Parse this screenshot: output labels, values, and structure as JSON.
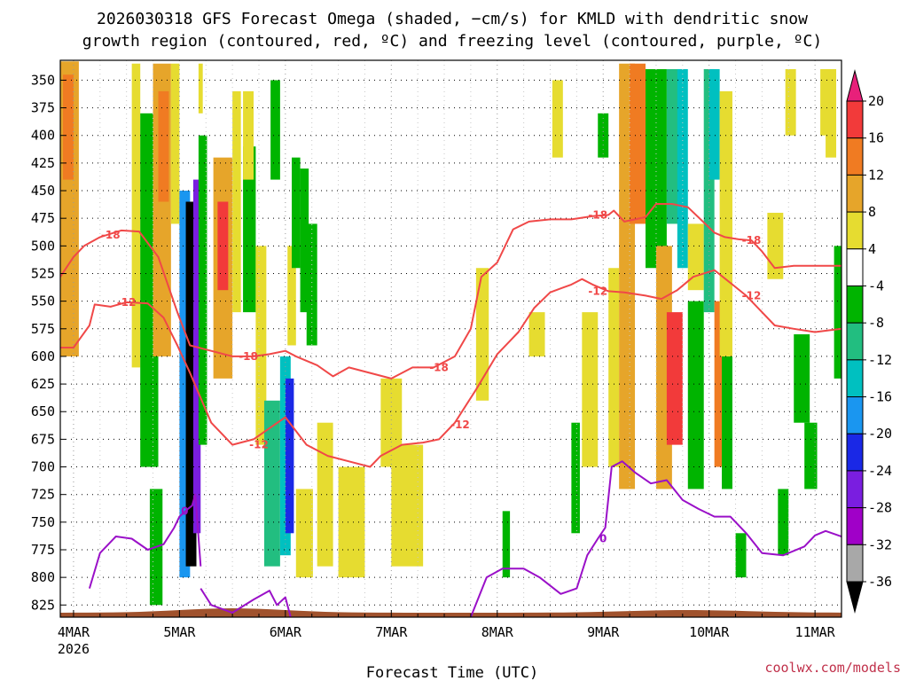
{
  "chart_data": {
    "type": "heatmap",
    "title_lines": [
      "2026030318 GFS Forecast Omega (shaded, −cm/s) for KMLD with dendritic snow",
      "growth region (contoured, red, ºC) and freezing level (contoured, purple, ºC)"
    ],
    "xlabel": "Forecast Time (UTC)",
    "credit": "coolwx.com/models",
    "x_ticks": [
      {
        "t": 0.0,
        "label": "4MAR",
        "sub": "2026"
      },
      {
        "t": 1.0,
        "label": "5MAR"
      },
      {
        "t": 2.0,
        "label": "6MAR"
      },
      {
        "t": 3.0,
        "label": "7MAR"
      },
      {
        "t": 4.0,
        "label": "8MAR"
      },
      {
        "t": 5.0,
        "label": "9MAR"
      },
      {
        "t": 6.0,
        "label": "10MAR"
      },
      {
        "t": 7.0,
        "label": "11MAR"
      }
    ],
    "xlim": [
      -0.125,
      7.25
    ],
    "y_ticks": [
      350,
      375,
      400,
      425,
      450,
      475,
      500,
      525,
      550,
      575,
      600,
      625,
      650,
      675,
      700,
      725,
      750,
      775,
      800,
      825
    ],
    "ylim": [
      332,
      836
    ],
    "colorbar": {
      "labels": [
        "20",
        "16",
        "12",
        "8",
        "4",
        "-4",
        "-8",
        "-12",
        "-16",
        "-20",
        "-24",
        "-28",
        "-32",
        "-36"
      ],
      "bands": [
        {
          "from": 20,
          "to": 24,
          "color": "#e8207a"
        },
        {
          "from": 16,
          "to": 20,
          "color": "#f23a3a"
        },
        {
          "from": 12,
          "to": 16,
          "color": "#f07b22"
        },
        {
          "from": 8,
          "to": 12,
          "color": "#e6a52a"
        },
        {
          "from": 4,
          "to": 8,
          "color": "#e6dc30"
        },
        {
          "from": -4,
          "to": 4,
          "color": "#ffffff"
        },
        {
          "from": -8,
          "to": -4,
          "color": "#00b400"
        },
        {
          "from": -12,
          "to": -8,
          "color": "#22be80"
        },
        {
          "from": -16,
          "to": -12,
          "color": "#00c0c0"
        },
        {
          "from": -20,
          "to": -16,
          "color": "#1a96f0"
        },
        {
          "from": -24,
          "to": -20,
          "color": "#1a28e6"
        },
        {
          "from": -28,
          "to": -24,
          "color": "#7a1ee0"
        },
        {
          "from": -32,
          "to": -28,
          "color": "#a000c8"
        },
        {
          "from": -36,
          "to": -32,
          "color": "#a8a8a8"
        },
        {
          "from": -40,
          "to": -36,
          "color": "#000000"
        }
      ]
    },
    "omega_regions": [
      {
        "t0": -0.125,
        "t1": 0.05,
        "p0": 333,
        "p1": 600,
        "value": 8
      },
      {
        "t0": -0.1,
        "t1": 0.0,
        "p0": 345,
        "p1": 440,
        "value": 12
      },
      {
        "t0": 0.55,
        "t1": 0.63,
        "p0": 335,
        "p1": 610,
        "value": 6
      },
      {
        "t0": 0.63,
        "t1": 0.8,
        "p0": 380,
        "p1": 700,
        "value": -6
      },
      {
        "t0": 0.75,
        "t1": 0.92,
        "p0": 335,
        "p1": 600,
        "value": 8
      },
      {
        "t0": 0.8,
        "t1": 0.9,
        "p0": 360,
        "p1": 460,
        "value": 12
      },
      {
        "t0": 0.72,
        "t1": 0.84,
        "p0": 720,
        "p1": 825,
        "value": -6
      },
      {
        "t0": 0.92,
        "t1": 1.0,
        "p0": 335,
        "p1": 480,
        "value": 6
      },
      {
        "t0": 1.0,
        "t1": 1.1,
        "p0": 450,
        "p1": 800,
        "value": -18
      },
      {
        "t0": 1.06,
        "t1": 1.16,
        "p0": 460,
        "p1": 790,
        "value": -40
      },
      {
        "t0": 1.13,
        "t1": 1.2,
        "p0": 440,
        "p1": 760,
        "value": -26
      },
      {
        "t0": 1.18,
        "t1": 1.26,
        "p0": 400,
        "p1": 680,
        "value": -6
      },
      {
        "t0": 1.18,
        "t1": 1.22,
        "p0": 335,
        "p1": 380,
        "value": 6
      },
      {
        "t0": 1.32,
        "t1": 1.5,
        "p0": 420,
        "p1": 620,
        "value": 10
      },
      {
        "t0": 1.36,
        "t1": 1.46,
        "p0": 460,
        "p1": 540,
        "value": 18
      },
      {
        "t0": 1.5,
        "t1": 1.58,
        "p0": 360,
        "p1": 560,
        "value": 6
      },
      {
        "t0": 1.6,
        "t1": 1.72,
        "p0": 410,
        "p1": 560,
        "value": -6
      },
      {
        "t0": 1.6,
        "t1": 1.7,
        "p0": 360,
        "p1": 440,
        "value": 6
      },
      {
        "t0": 1.72,
        "t1": 1.82,
        "p0": 500,
        "p1": 680,
        "value": 6
      },
      {
        "t0": 1.8,
        "t1": 1.95,
        "p0": 640,
        "p1": 790,
        "value": -10
      },
      {
        "t0": 1.86,
        "t1": 1.95,
        "p0": 350,
        "p1": 440,
        "value": -6
      },
      {
        "t0": 1.95,
        "t1": 2.05,
        "p0": 600,
        "p1": 780,
        "value": -14
      },
      {
        "t0": 2.0,
        "t1": 2.08,
        "p0": 620,
        "p1": 760,
        "value": -22
      },
      {
        "t0": 2.02,
        "t1": 2.1,
        "p0": 500,
        "p1": 590,
        "value": 6
      },
      {
        "t0": 2.06,
        "t1": 2.14,
        "p0": 420,
        "p1": 520,
        "value": -6
      },
      {
        "t0": 2.14,
        "t1": 2.22,
        "p0": 430,
        "p1": 560,
        "value": -8
      },
      {
        "t0": 2.2,
        "t1": 2.3,
        "p0": 480,
        "p1": 590,
        "value": -6
      },
      {
        "t0": 2.1,
        "t1": 2.26,
        "p0": 720,
        "p1": 800,
        "value": 6
      },
      {
        "t0": 2.3,
        "t1": 2.45,
        "p0": 660,
        "p1": 790,
        "value": 6
      },
      {
        "t0": 2.5,
        "t1": 2.75,
        "p0": 700,
        "p1": 800,
        "value": 6
      },
      {
        "t0": 2.9,
        "t1": 3.1,
        "p0": 620,
        "p1": 700,
        "value": 6
      },
      {
        "t0": 3.0,
        "t1": 3.3,
        "p0": 680,
        "p1": 790,
        "value": 6
      },
      {
        "t0": 3.8,
        "t1": 3.92,
        "p0": 520,
        "p1": 640,
        "value": 6
      },
      {
        "t0": 4.05,
        "t1": 4.12,
        "p0": 740,
        "p1": 800,
        "value": -6
      },
      {
        "t0": 4.3,
        "t1": 4.45,
        "p0": 560,
        "p1": 600,
        "value": 6
      },
      {
        "t0": 4.52,
        "t1": 4.62,
        "p0": 350,
        "p1": 420,
        "value": 6
      },
      {
        "t0": 4.7,
        "t1": 4.78,
        "p0": 660,
        "p1": 760,
        "value": -6
      },
      {
        "t0": 4.8,
        "t1": 4.95,
        "p0": 560,
        "p1": 700,
        "value": 6
      },
      {
        "t0": 4.95,
        "t1": 5.05,
        "p0": 380,
        "p1": 420,
        "value": -6
      },
      {
        "t0": 5.05,
        "t1": 5.15,
        "p0": 520,
        "p1": 700,
        "value": 6
      },
      {
        "t0": 5.15,
        "t1": 5.3,
        "p0": 335,
        "p1": 720,
        "value": 8
      },
      {
        "t0": 5.25,
        "t1": 5.4,
        "p0": 335,
        "p1": 480,
        "value": 12
      },
      {
        "t0": 5.4,
        "t1": 5.6,
        "p0": 340,
        "p1": 520,
        "value": -6
      },
      {
        "t0": 5.5,
        "t1": 5.65,
        "p0": 500,
        "p1": 720,
        "value": 8
      },
      {
        "t0": 5.6,
        "t1": 5.75,
        "p0": 340,
        "p1": 480,
        "value": -10
      },
      {
        "t0": 5.6,
        "t1": 5.75,
        "p0": 560,
        "p1": 680,
        "value": 18
      },
      {
        "t0": 5.7,
        "t1": 5.8,
        "p0": 340,
        "p1": 520,
        "value": -14
      },
      {
        "t0": 5.8,
        "t1": 5.95,
        "p0": 550,
        "p1": 720,
        "value": -6
      },
      {
        "t0": 5.8,
        "t1": 5.95,
        "p0": 480,
        "p1": 540,
        "value": 6
      },
      {
        "t0": 5.95,
        "t1": 6.05,
        "p0": 340,
        "p1": 560,
        "value": -10
      },
      {
        "t0": 6.0,
        "t1": 6.1,
        "p0": 340,
        "p1": 440,
        "value": -16
      },
      {
        "t0": 6.05,
        "t1": 6.15,
        "p0": 550,
        "p1": 700,
        "value": 12
      },
      {
        "t0": 6.12,
        "t1": 6.22,
        "p0": 600,
        "p1": 720,
        "value": -6
      },
      {
        "t0": 6.1,
        "t1": 6.22,
        "p0": 360,
        "p1": 600,
        "value": 6
      },
      {
        "t0": 6.25,
        "t1": 6.35,
        "p0": 760,
        "p1": 800,
        "value": -6
      },
      {
        "t0": 6.55,
        "t1": 6.7,
        "p0": 470,
        "p1": 530,
        "value": 6
      },
      {
        "t0": 6.65,
        "t1": 6.75,
        "p0": 720,
        "p1": 780,
        "value": -6
      },
      {
        "t0": 6.72,
        "t1": 6.82,
        "p0": 340,
        "p1": 400,
        "value": 6
      },
      {
        "t0": 6.8,
        "t1": 6.95,
        "p0": 580,
        "p1": 660,
        "value": -6
      },
      {
        "t0": 6.9,
        "t1": 7.02,
        "p0": 660,
        "p1": 720,
        "value": -6
      },
      {
        "t0": 7.05,
        "t1": 7.15,
        "p0": 340,
        "p1": 400,
        "value": 6
      },
      {
        "t0": 7.1,
        "t1": 7.2,
        "p0": 340,
        "p1": 420,
        "value": 6
      },
      {
        "t0": 7.18,
        "t1": 7.25,
        "p0": 500,
        "p1": 620,
        "value": -6
      }
    ],
    "dgz_contours": [
      {
        "label": "-18",
        "label_at": [
          [
            0.35,
            490
          ],
          [
            1.65,
            600
          ],
          [
            3.45,
            610
          ],
          [
            4.95,
            472
          ],
          [
            6.4,
            495
          ]
        ],
        "points": [
          [
            -0.125,
            528
          ],
          [
            0.0,
            510
          ],
          [
            0.1,
            500
          ],
          [
            0.25,
            492
          ],
          [
            0.45,
            486
          ],
          [
            0.62,
            487
          ],
          [
            0.8,
            510
          ],
          [
            0.98,
            560
          ],
          [
            1.1,
            590
          ],
          [
            1.3,
            595
          ],
          [
            1.5,
            600
          ],
          [
            1.7,
            600
          ],
          [
            1.85,
            598
          ],
          [
            2.0,
            595
          ],
          [
            2.1,
            600
          ],
          [
            2.3,
            608
          ],
          [
            2.45,
            618
          ],
          [
            2.6,
            610
          ],
          [
            2.8,
            615
          ],
          [
            3.0,
            620
          ],
          [
            3.2,
            610
          ],
          [
            3.4,
            610
          ],
          [
            3.6,
            600
          ],
          [
            3.75,
            575
          ],
          [
            3.85,
            528
          ],
          [
            4.0,
            515
          ],
          [
            4.1,
            495
          ],
          [
            4.15,
            485
          ],
          [
            4.3,
            478
          ],
          [
            4.5,
            476
          ],
          [
            4.7,
            476
          ],
          [
            4.9,
            473
          ],
          [
            5.05,
            472
          ],
          [
            5.1,
            468
          ],
          [
            5.2,
            478
          ],
          [
            5.4,
            474
          ],
          [
            5.5,
            462
          ],
          [
            5.65,
            462
          ],
          [
            5.8,
            465
          ],
          [
            5.92,
            476
          ],
          [
            6.05,
            488
          ],
          [
            6.15,
            492
          ],
          [
            6.28,
            494
          ],
          [
            6.4,
            495
          ],
          [
            6.5,
            505
          ],
          [
            6.62,
            520
          ],
          [
            6.8,
            518
          ],
          [
            7.0,
            518
          ],
          [
            7.25,
            518
          ]
        ]
      },
      {
        "label": "-12",
        "label_at": [
          [
            0.5,
            551
          ],
          [
            1.75,
            680
          ],
          [
            3.65,
            662
          ],
          [
            4.95,
            541
          ],
          [
            6.4,
            545
          ]
        ],
        "points": [
          [
            -0.125,
            592
          ],
          [
            0.0,
            592
          ],
          [
            0.15,
            572
          ],
          [
            0.2,
            553
          ],
          [
            0.35,
            555
          ],
          [
            0.5,
            551
          ],
          [
            0.7,
            552
          ],
          [
            0.85,
            565
          ],
          [
            0.98,
            590
          ],
          [
            1.1,
            615
          ],
          [
            1.3,
            660
          ],
          [
            1.5,
            680
          ],
          [
            1.7,
            675
          ],
          [
            1.85,
            665
          ],
          [
            2.0,
            655
          ],
          [
            2.2,
            680
          ],
          [
            2.4,
            690
          ],
          [
            2.6,
            695
          ],
          [
            2.8,
            700
          ],
          [
            2.9,
            690
          ],
          [
            3.1,
            680
          ],
          [
            3.3,
            678
          ],
          [
            3.45,
            675
          ],
          [
            3.6,
            660
          ],
          [
            3.8,
            630
          ],
          [
            4.0,
            598
          ],
          [
            4.2,
            578
          ],
          [
            4.35,
            556
          ],
          [
            4.5,
            542
          ],
          [
            4.7,
            535
          ],
          [
            4.8,
            530
          ],
          [
            4.9,
            535
          ],
          [
            5.05,
            541
          ],
          [
            5.2,
            542
          ],
          [
            5.4,
            545
          ],
          [
            5.55,
            548
          ],
          [
            5.7,
            540
          ],
          [
            5.85,
            528
          ],
          [
            6.05,
            522
          ],
          [
            6.22,
            535
          ],
          [
            6.35,
            545
          ],
          [
            6.5,
            560
          ],
          [
            6.62,
            572
          ],
          [
            6.8,
            575
          ],
          [
            7.0,
            578
          ],
          [
            7.25,
            575
          ]
        ]
      }
    ],
    "freezing_level_segments": [
      {
        "label": "0",
        "label_at": [
          [
            1.05,
            740
          ]
        ],
        "points": [
          [
            0.15,
            810
          ],
          [
            0.25,
            778
          ],
          [
            0.4,
            763
          ],
          [
            0.55,
            765
          ],
          [
            0.7,
            775
          ],
          [
            0.85,
            770
          ],
          [
            0.95,
            755
          ],
          [
            1.0,
            745
          ],
          [
            1.08,
            738
          ],
          [
            1.12,
            735
          ],
          [
            1.15,
            725
          ],
          [
            1.2,
            790
          ]
        ]
      },
      {
        "label": "",
        "label_at": [],
        "points": [
          [
            1.2,
            810
          ],
          [
            1.3,
            825
          ],
          [
            1.5,
            832
          ],
          [
            1.7,
            820
          ],
          [
            1.85,
            812
          ],
          [
            1.92,
            825
          ],
          [
            2.0,
            818
          ],
          [
            2.05,
            836
          ]
        ]
      },
      {
        "label": "0",
        "label_at": [
          [
            5.0,
            765
          ]
        ],
        "points": [
          [
            3.75,
            836
          ],
          [
            3.9,
            800
          ],
          [
            4.05,
            792
          ],
          [
            4.25,
            792
          ],
          [
            4.4,
            800
          ],
          [
            4.6,
            815
          ],
          [
            4.75,
            810
          ],
          [
            4.85,
            780
          ],
          [
            4.95,
            765
          ],
          [
            5.02,
            755
          ],
          [
            5.08,
            700
          ],
          [
            5.18,
            695
          ],
          [
            5.3,
            705
          ],
          [
            5.45,
            715
          ],
          [
            5.6,
            712
          ],
          [
            5.75,
            730
          ],
          [
            5.9,
            738
          ],
          [
            6.05,
            745
          ],
          [
            6.2,
            745
          ],
          [
            6.35,
            760
          ],
          [
            6.5,
            778
          ],
          [
            6.7,
            780
          ],
          [
            6.9,
            772
          ],
          [
            7.0,
            762
          ],
          [
            7.1,
            758
          ],
          [
            7.25,
            763
          ]
        ]
      }
    ]
  }
}
